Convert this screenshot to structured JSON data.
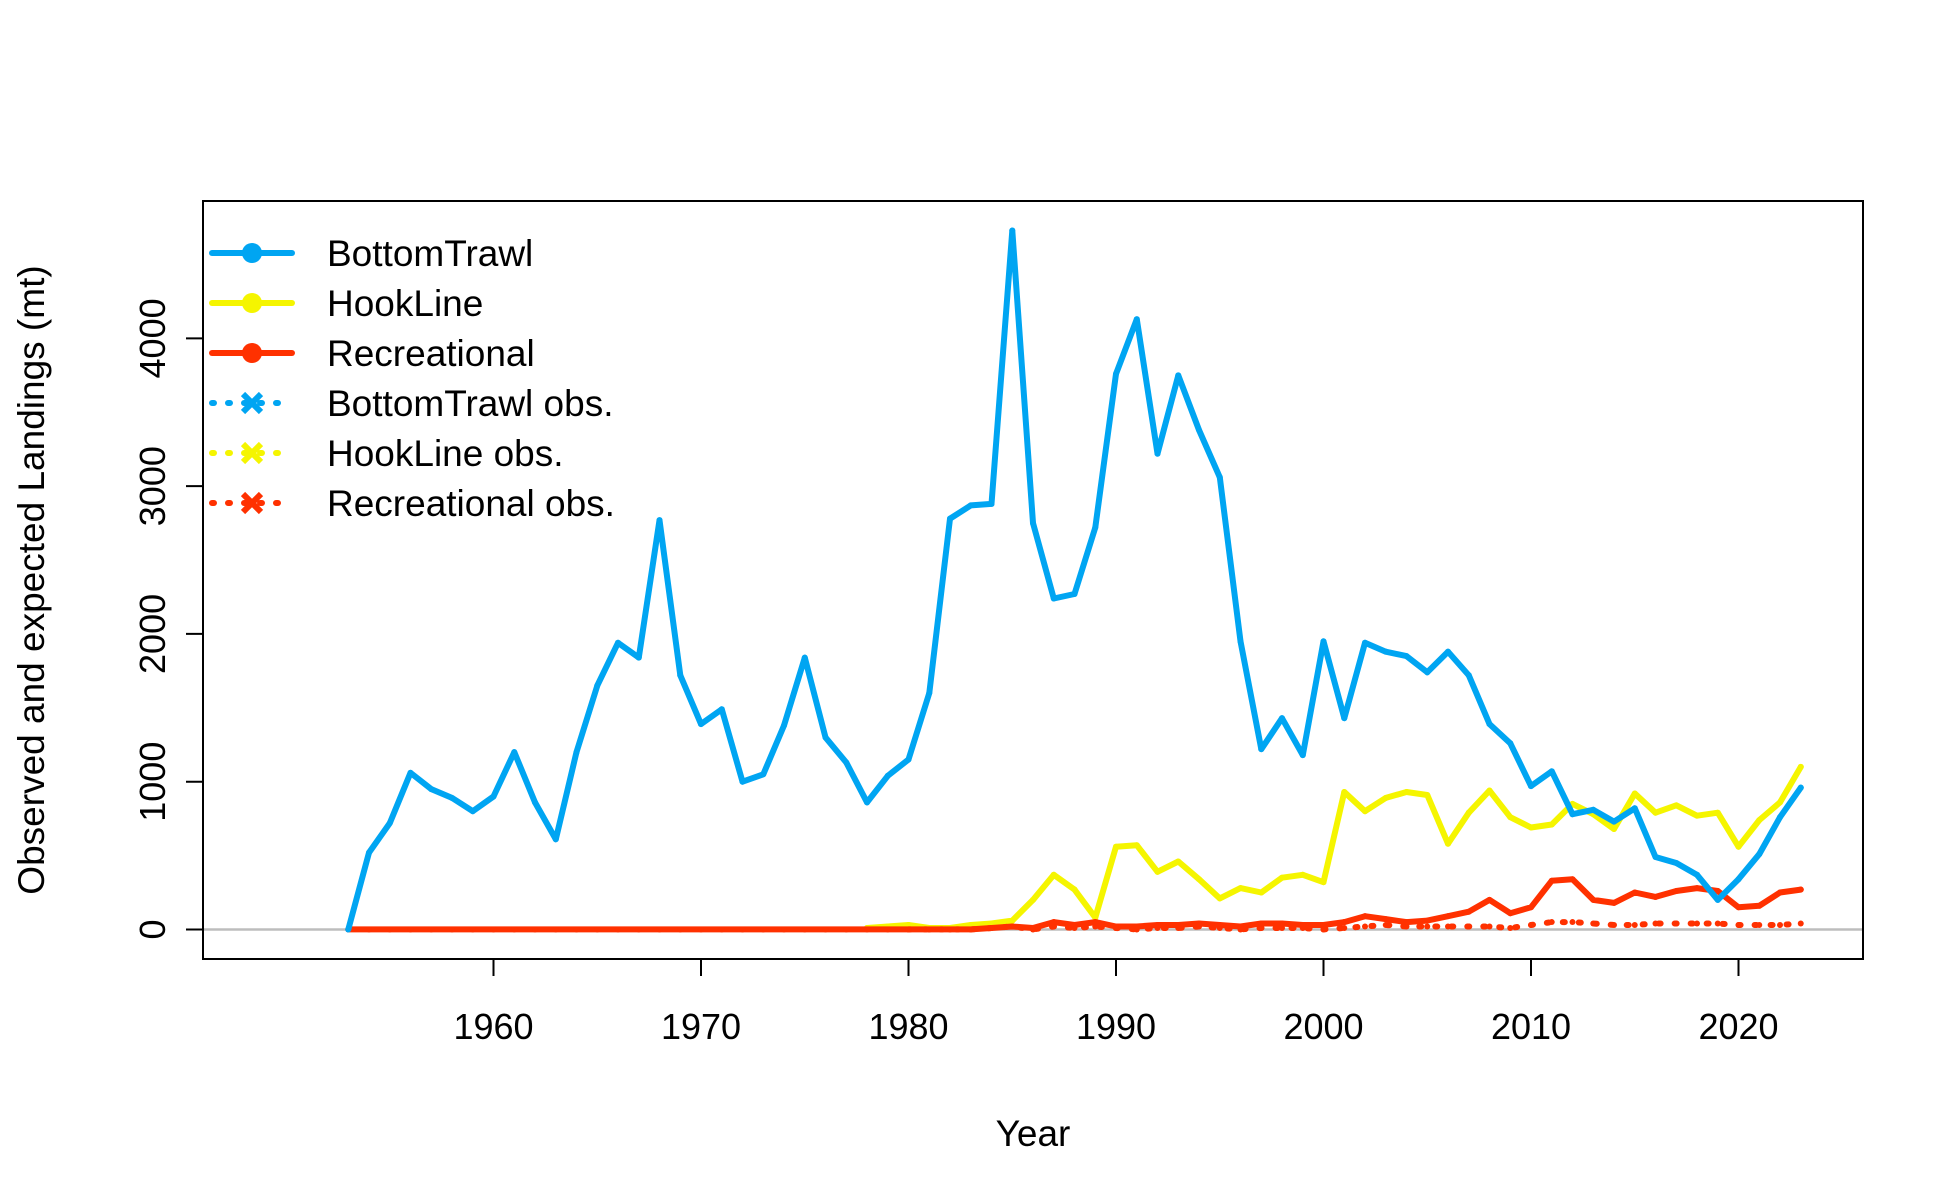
{
  "chart_data": {
    "type": "line",
    "title": "",
    "xlabel": "Year",
    "ylabel": "Observed and expected Landings (mt)",
    "xlim": [
      1946,
      2026
    ],
    "ylim": [
      -200,
      4930
    ],
    "x_ticks": [
      1960,
      1970,
      1980,
      1990,
      2000,
      2010,
      2020
    ],
    "y_ticks": [
      0,
      1000,
      2000,
      3000,
      4000
    ],
    "grid": false,
    "zero_line": true,
    "legend_position": "top-left",
    "colors": {
      "BottomTrawl": "#00a5f2",
      "HookLine": "#f5f500",
      "Recreational": "#ff3100",
      "zero_line": "#bdbdbd"
    },
    "legend": [
      {
        "label": "BottomTrawl",
        "color": "#00a5f2",
        "style": "solid",
        "marker": "dot"
      },
      {
        "label": "HookLine",
        "color": "#f5f500",
        "style": "solid",
        "marker": "dot"
      },
      {
        "label": "Recreational",
        "color": "#ff3100",
        "style": "solid",
        "marker": "dot"
      },
      {
        "label": "BottomTrawl obs.",
        "color": "#00a5f2",
        "style": "dotted",
        "marker": "x"
      },
      {
        "label": "HookLine obs.",
        "color": "#f5f500",
        "style": "dotted",
        "marker": "x"
      },
      {
        "label": "Recreational obs.",
        "color": "#ff3100",
        "style": "dotted",
        "marker": "x"
      }
    ],
    "series": [
      {
        "name": "HookLine",
        "color": "#f5f500",
        "style": "solid",
        "x": [
          1978,
          1979,
          1980,
          1981,
          1982,
          1983,
          1984,
          1985,
          1986,
          1987,
          1988,
          1989,
          1990,
          1991,
          1992,
          1993,
          1994,
          1995,
          1996,
          1997,
          1998,
          1999,
          2000,
          2001,
          2002,
          2003,
          2004,
          2005,
          2006,
          2007,
          2008,
          2009,
          2010,
          2011,
          2012,
          2013,
          2014,
          2015,
          2016,
          2017,
          2018,
          2019,
          2020,
          2021,
          2022,
          2023
        ],
        "y": [
          10,
          20,
          30,
          10,
          10,
          30,
          40,
          60,
          200,
          370,
          270,
          80,
          560,
          570,
          390,
          460,
          340,
          210,
          280,
          250,
          350,
          370,
          320,
          930,
          800,
          890,
          930,
          910,
          580,
          790,
          940,
          760,
          690,
          710,
          850,
          780,
          680,
          920,
          790,
          840,
          770,
          790,
          560,
          740,
          860,
          1100
        ]
      },
      {
        "name": "Recreational obs.",
        "color": "#ff3100",
        "style": "dotted",
        "x": [
          1980,
          1981,
          1982,
          1983,
          1984,
          1985,
          1986,
          1987,
          1988,
          1989,
          1990,
          1991,
          1992,
          1993,
          1994,
          1995,
          1996,
          1997,
          1998,
          1999,
          2000,
          2001,
          2002,
          2003,
          2004,
          2005,
          2006,
          2007,
          2008,
          2009,
          2010,
          2011,
          2012,
          2013,
          2014,
          2015,
          2016,
          2017,
          2018,
          2019,
          2020,
          2021,
          2022,
          2023
        ],
        "y": [
          0,
          0,
          0,
          0,
          10,
          20,
          0,
          20,
          10,
          20,
          10,
          0,
          10,
          10,
          20,
          10,
          0,
          10,
          10,
          10,
          0,
          10,
          20,
          30,
          20,
          20,
          20,
          20,
          20,
          10,
          30,
          50,
          50,
          40,
          30,
          30,
          40,
          40,
          40,
          40,
          30,
          30,
          30,
          40
        ]
      },
      {
        "name": "Recreational",
        "color": "#ff3100",
        "style": "solid",
        "x": [
          1953,
          1954,
          1955,
          1956,
          1957,
          1958,
          1959,
          1960,
          1961,
          1962,
          1963,
          1964,
          1965,
          1966,
          1967,
          1968,
          1969,
          1970,
          1971,
          1972,
          1973,
          1974,
          1975,
          1976,
          1977,
          1978,
          1979,
          1980,
          1981,
          1982,
          1983,
          1984,
          1985,
          1986,
          1987,
          1988,
          1989,
          1990,
          1991,
          1992,
          1993,
          1994,
          1995,
          1996,
          1997,
          1998,
          1999,
          2000,
          2001,
          2002,
          2003,
          2004,
          2005,
          2006,
          2007,
          2008,
          2009,
          2010,
          2011,
          2012,
          2013,
          2014,
          2015,
          2016,
          2017,
          2018,
          2019,
          2020,
          2021,
          2022,
          2023
        ],
        "y": [
          0,
          0,
          0,
          0,
          0,
          0,
          0,
          0,
          0,
          0,
          0,
          0,
          0,
          0,
          0,
          0,
          0,
          0,
          0,
          0,
          0,
          0,
          0,
          0,
          0,
          0,
          0,
          0,
          0,
          0,
          0,
          10,
          20,
          10,
          50,
          30,
          50,
          20,
          20,
          30,
          30,
          40,
          30,
          20,
          40,
          40,
          30,
          30,
          50,
          90,
          70,
          50,
          60,
          90,
          120,
          200,
          110,
          150,
          330,
          340,
          200,
          180,
          250,
          220,
          260,
          280,
          260,
          150,
          160,
          250,
          270
        ]
      },
      {
        "name": "BottomTrawl",
        "color": "#00a5f2",
        "style": "solid",
        "x": [
          1953,
          1954,
          1955,
          1956,
          1957,
          1958,
          1959,
          1960,
          1961,
          1962,
          1963,
          1964,
          1965,
          1966,
          1967,
          1968,
          1969,
          1970,
          1971,
          1972,
          1973,
          1974,
          1975,
          1976,
          1977,
          1978,
          1979,
          1980,
          1981,
          1982,
          1983,
          1984,
          1985,
          1986,
          1987,
          1988,
          1989,
          1990,
          1991,
          1992,
          1993,
          1994,
          1995,
          1996,
          1997,
          1998,
          1999,
          2000,
          2001,
          2002,
          2003,
          2004,
          2005,
          2006,
          2007,
          2008,
          2009,
          2010,
          2011,
          2012,
          2013,
          2014,
          2015,
          2016,
          2017,
          2018,
          2019,
          2020,
          2021,
          2022,
          2023
        ],
        "y": [
          0,
          520,
          720,
          1060,
          950,
          890,
          800,
          900,
          1200,
          860,
          610,
          1200,
          1650,
          1940,
          1840,
          2770,
          1720,
          1390,
          1490,
          1000,
          1050,
          1380,
          1840,
          1300,
          1130,
          860,
          1040,
          1150,
          1600,
          2780,
          2870,
          2880,
          4730,
          2750,
          2240,
          2270,
          2720,
          3760,
          4130,
          3220,
          3750,
          3380,
          3060,
          1950,
          1220,
          1430,
          1180,
          1950,
          1430,
          1940,
          1880,
          1850,
          1740,
          1880,
          1720,
          1390,
          1260,
          970,
          1070,
          780,
          810,
          730,
          820,
          490,
          450,
          370,
          200,
          340,
          510,
          760,
          960
        ]
      }
    ]
  }
}
